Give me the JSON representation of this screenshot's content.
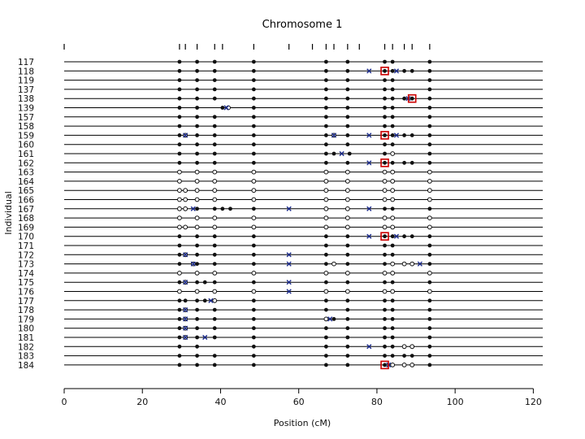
{
  "chart_data": {
    "type": "scatter",
    "title": "Chromosome 1",
    "xlabel": "Position (cM)",
    "ylabel": "Individual",
    "xlim": [
      0,
      122
    ],
    "x_ticks": [
      0,
      20,
      40,
      60,
      80,
      100,
      120
    ],
    "marker_positions": [
      0,
      29.5,
      31,
      34,
      38.5,
      40.5,
      48.5,
      57.5,
      63.5,
      67,
      69,
      72.5,
      75.5,
      82,
      84,
      87,
      89,
      93.5
    ],
    "individuals": [
      "117",
      "118",
      "119",
      "137",
      "138",
      "139",
      "157",
      "158",
      "159",
      "160",
      "161",
      "162",
      "163",
      "164",
      "165",
      "166",
      "167",
      "168",
      "169",
      "170",
      "171",
      "172",
      "173",
      "174",
      "175",
      "176",
      "177",
      "178",
      "179",
      "180",
      "181",
      "182",
      "183",
      "184"
    ],
    "symbols": {
      "het": "filled",
      "hom": "open",
      "crossover": "x",
      "highlight": "red-square"
    },
    "colors": {
      "genotype": "#111111",
      "crossover": "#1a2a8c",
      "highlight": "#cc0000",
      "line": "#000000"
    },
    "rows": [
      {
        "f": [
          29.5,
          34,
          38.5,
          48.5,
          67,
          72.5,
          82,
          84,
          93.5
        ],
        "o": [],
        "x": []
      },
      {
        "f": [
          29.5,
          34,
          38.5,
          48.5,
          67,
          72.5,
          82,
          84,
          87,
          89,
          93.5
        ],
        "o": [],
        "x": [
          78,
          85
        ],
        "h": [
          82
        ]
      },
      {
        "f": [
          29.5,
          34,
          38.5,
          48.5,
          67,
          72.5,
          82,
          84,
          93.5
        ],
        "o": [],
        "x": []
      },
      {
        "f": [
          29.5,
          34,
          38.5,
          48.5,
          67,
          72.5,
          82,
          84,
          93.5
        ],
        "o": [],
        "x": []
      },
      {
        "f": [
          29.5,
          34,
          38.5,
          48.5,
          67,
          72.5,
          82,
          84,
          87,
          89,
          93.5
        ],
        "o": [],
        "x": [
          88
        ],
        "h": [
          89
        ]
      },
      {
        "f": [
          29.5,
          34,
          40.5,
          48.5,
          67,
          72.5,
          82,
          84,
          93.5
        ],
        "o": [
          42
        ],
        "x": [
          41.5
        ],
        "h": []
      },
      {
        "f": [
          29.5,
          34,
          38.5,
          48.5,
          67,
          72.5,
          82,
          84,
          93.5
        ],
        "o": [],
        "x": []
      },
      {
        "f": [
          29.5,
          34,
          38.5,
          48.5,
          67,
          72.5,
          82,
          84,
          93.5
        ],
        "o": [],
        "x": []
      },
      {
        "f": [
          29.5,
          34,
          38.5,
          48.5,
          67,
          72.5,
          82,
          84,
          87,
          89,
          93.5
        ],
        "o": [
          31,
          69
        ],
        "x": [
          31,
          69,
          78,
          85
        ],
        "h": [
          82
        ]
      },
      {
        "f": [
          29.5,
          34,
          38.5,
          48.5,
          67,
          72.5,
          82,
          84,
          93.5
        ],
        "o": [],
        "x": []
      },
      {
        "f": [
          29.5,
          34,
          38.5,
          48.5,
          67,
          69,
          73,
          82,
          93.5
        ],
        "o": [
          84
        ],
        "x": [
          71
        ],
        "h": []
      },
      {
        "f": [
          29.5,
          34,
          38.5,
          48.5,
          67,
          72.5,
          82,
          84,
          87,
          89,
          93.5
        ],
        "o": [],
        "x": [
          78
        ],
        "h": [
          82
        ]
      },
      {
        "f": [],
        "o": [
          29.5,
          34,
          38.5,
          48.5,
          67,
          72.5,
          82,
          84,
          93.5
        ],
        "x": []
      },
      {
        "f": [],
        "o": [
          29.5,
          34,
          38.5,
          48.5,
          67,
          72.5,
          82,
          84,
          93.5
        ],
        "x": []
      },
      {
        "f": [],
        "o": [
          29.5,
          31,
          34,
          38.5,
          48.5,
          67,
          72.5,
          82,
          84,
          93.5
        ],
        "x": []
      },
      {
        "f": [],
        "o": [
          29.5,
          31,
          34,
          38.5,
          48.5,
          67,
          72.5,
          82,
          84,
          93.5
        ],
        "x": []
      },
      {
        "f": [
          34,
          38.5,
          40.5,
          42.5,
          48.5,
          82,
          84,
          93.5
        ],
        "o": [
          29.5,
          31,
          67,
          72.5
        ],
        "x": [
          33,
          57.5,
          78
        ],
        "h": []
      },
      {
        "f": [],
        "o": [
          29.5,
          34,
          38.5,
          48.5,
          67,
          72.5,
          82,
          84,
          93.5
        ],
        "x": []
      },
      {
        "f": [],
        "o": [
          29.5,
          31,
          34,
          38.5,
          48.5,
          67,
          72.5,
          82,
          84,
          93.5
        ],
        "x": []
      },
      {
        "f": [
          29.5,
          34,
          38.5,
          48.5,
          67,
          72.5,
          82,
          84,
          87,
          89,
          93.5
        ],
        "o": [],
        "x": [
          78,
          85
        ],
        "h": [
          82
        ]
      },
      {
        "f": [
          29.5,
          34,
          38.5,
          48.5,
          67,
          72.5,
          82,
          84,
          93.5
        ],
        "o": [],
        "x": []
      },
      {
        "f": [
          29.5,
          34,
          38.5,
          48.5,
          67,
          72.5,
          82,
          84,
          93.5
        ],
        "o": [
          31
        ],
        "x": [
          31,
          57.5
        ],
        "h": []
      },
      {
        "f": [
          29.5,
          34,
          38.5,
          48.5,
          67,
          72.5,
          82,
          93.5
        ],
        "o": [
          33,
          69,
          84,
          87,
          89
        ],
        "x": [
          33,
          57.5,
          91
        ],
        "h": []
      },
      {
        "f": [],
        "o": [
          29.5,
          34,
          38.5,
          48.5,
          67,
          72.5,
          82,
          84,
          93.5
        ],
        "x": []
      },
      {
        "f": [
          29.5,
          34,
          36,
          38.5,
          48.5,
          67,
          72.5,
          82,
          84,
          93.5
        ],
        "o": [
          31
        ],
        "x": [
          31,
          57.5
        ],
        "h": []
      },
      {
        "f": [],
        "o": [
          29.5,
          34,
          38.5,
          48.5,
          67,
          72.5,
          82,
          84,
          93.5
        ],
        "x": [
          57.5
        ]
      },
      {
        "f": [
          29.5,
          31,
          34,
          36,
          48.5,
          67,
          72.5,
          82,
          84,
          93.5
        ],
        "o": [
          38.5
        ],
        "x": [
          37.5
        ],
        "h": []
      },
      {
        "f": [
          29.5,
          34,
          38.5,
          48.5,
          67,
          72.5,
          82,
          84,
          93.5
        ],
        "o": [
          31
        ],
        "x": [
          31
        ],
        "h": []
      },
      {
        "f": [
          29.5,
          34,
          38.5,
          48.5,
          69,
          72.5,
          82,
          84,
          93.5
        ],
        "o": [
          31,
          67
        ],
        "x": [
          31,
          68
        ],
        "h": []
      },
      {
        "f": [
          29.5,
          34,
          38.5,
          48.5,
          67,
          72.5,
          82,
          84,
          93.5
        ],
        "o": [
          31
        ],
        "x": [
          31
        ],
        "h": []
      },
      {
        "f": [
          29.5,
          34,
          38.5,
          48.5,
          67,
          72.5,
          82,
          84,
          93.5
        ],
        "o": [
          31
        ],
        "x": [
          31,
          36
        ],
        "h": []
      },
      {
        "f": [
          29.5,
          34,
          48.5,
          67,
          72.5,
          82,
          84,
          93.5
        ],
        "o": [
          87,
          89
        ],
        "x": [
          78
        ],
        "h": []
      },
      {
        "f": [
          29.5,
          34,
          38.5,
          48.5,
          67,
          72.5,
          82,
          84,
          87,
          89,
          93.5
        ],
        "o": [],
        "x": []
      },
      {
        "f": [
          29.5,
          34,
          38.5,
          48.5,
          67,
          72.5,
          82,
          93.5
        ],
        "o": [
          84,
          87,
          89
        ],
        "x": [
          83
        ],
        "h": [
          82
        ]
      }
    ]
  }
}
